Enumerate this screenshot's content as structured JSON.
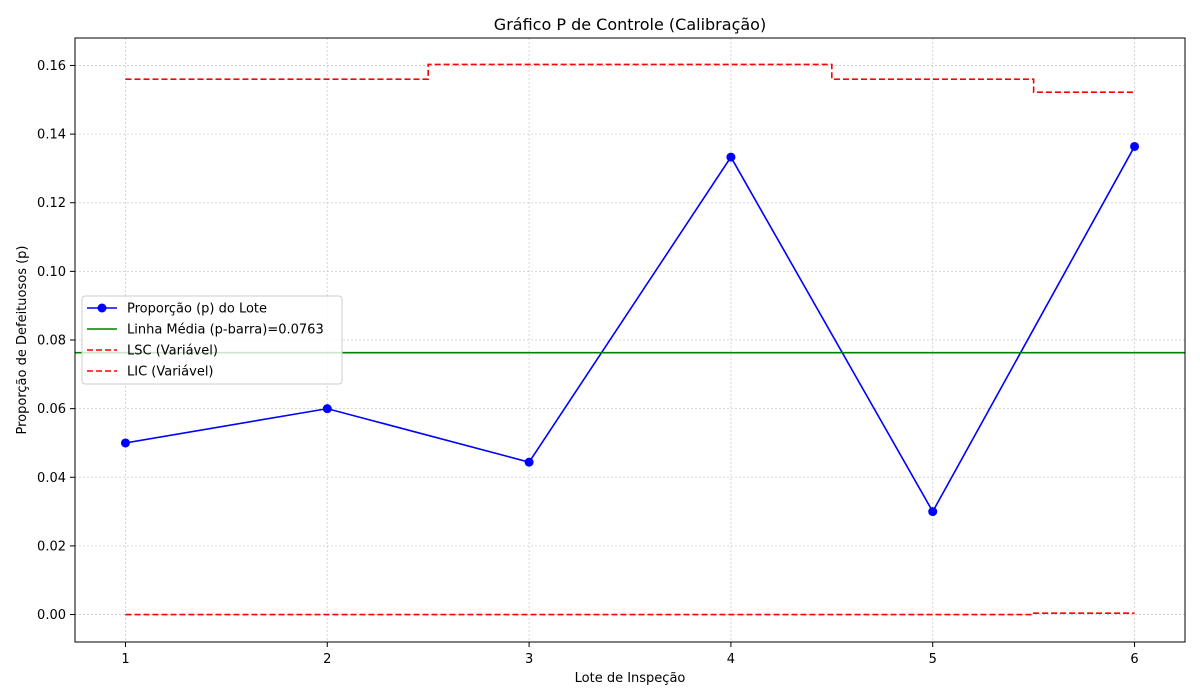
{
  "chart_data": {
    "type": "line",
    "title": "Gráfico P de Controle (Calibração)",
    "xlabel": "Lote de Inspeção",
    "ylabel": "Proporção de Defeituosos (p)",
    "x": [
      1,
      2,
      3,
      4,
      5,
      6
    ],
    "x_tick_labels": [
      "1",
      "2",
      "3",
      "4",
      "5",
      "6"
    ],
    "xlim": [
      0.75,
      6.25
    ],
    "ylim": [
      -0.008,
      0.168
    ],
    "y_ticks": [
      0.0,
      0.02,
      0.04,
      0.06,
      0.08,
      0.1,
      0.12,
      0.14,
      0.16
    ],
    "y_tick_labels": [
      "0.00",
      "0.02",
      "0.04",
      "0.06",
      "0.08",
      "0.10",
      "0.12",
      "0.14",
      "0.16"
    ],
    "grid": true,
    "legend_position": "center-left",
    "series": [
      {
        "name": "Proporção (p) do Lote",
        "kind": "line-marker",
        "color": "#0000ff",
        "values": [
          0.05,
          0.06,
          0.0444,
          0.1333,
          0.03,
          0.1364
        ]
      },
      {
        "name": "Linha Média (p-barra)=0.0763",
        "kind": "hline",
        "color": "#008000",
        "value": 0.0763
      },
      {
        "name": "LSC (Variável)",
        "kind": "step-dashed",
        "color": "#ff0000",
        "values": [
          0.156,
          0.156,
          0.1603,
          0.1603,
          0.156,
          0.1522
        ]
      },
      {
        "name": "LIC (Variável)",
        "kind": "step-dashed",
        "color": "#ff0000",
        "values": [
          0.0,
          0.0,
          0.0,
          0.0,
          0.0,
          0.0004
        ]
      }
    ]
  }
}
